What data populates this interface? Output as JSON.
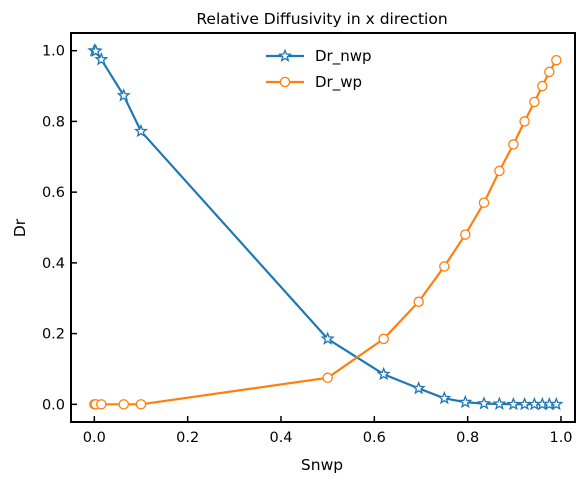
{
  "chart_data": {
    "type": "line",
    "title": "Relative Diffusivity in x direction",
    "xlabel": "Snwp",
    "ylabel": "Dr",
    "xlim": [
      -0.05,
      1.03
    ],
    "ylim": [
      -0.05,
      1.05
    ],
    "xticks": [
      0.0,
      0.2,
      0.4,
      0.6,
      0.8,
      1.0
    ],
    "xtick_labels": [
      "0.0",
      "0.2",
      "0.4",
      "0.6",
      "0.8",
      "1.0"
    ],
    "yticks": [
      0.0,
      0.2,
      0.4,
      0.6,
      0.8,
      1.0
    ],
    "ytick_labels": [
      "0.0",
      "0.2",
      "0.4",
      "0.6",
      "0.8",
      "1.0"
    ],
    "grid": false,
    "legend_position": "top-center",
    "series": [
      {
        "name": "Dr_nwp",
        "color": "#1f77b4",
        "marker": "star",
        "points": [
          [
            0.0,
            1.0
          ],
          [
            0.003,
            0.999
          ],
          [
            0.015,
            0.975
          ],
          [
            0.063,
            0.873
          ],
          [
            0.1,
            0.772
          ],
          [
            0.5,
            0.185
          ],
          [
            0.62,
            0.085
          ],
          [
            0.695,
            0.045
          ],
          [
            0.75,
            0.017
          ],
          [
            0.795,
            0.006
          ],
          [
            0.835,
            0.002
          ],
          [
            0.868,
            0.001
          ],
          [
            0.898,
            0.0
          ],
          [
            0.922,
            0.0
          ],
          [
            0.943,
            0.0
          ],
          [
            0.96,
            0.0
          ],
          [
            0.975,
            0.0
          ],
          [
            0.99,
            0.0
          ]
        ]
      },
      {
        "name": "Dr_wp",
        "color": "#ff7f0e",
        "marker": "circle",
        "points": [
          [
            0.0,
            0.0
          ],
          [
            0.003,
            0.0
          ],
          [
            0.015,
            0.0
          ],
          [
            0.063,
            0.0
          ],
          [
            0.1,
            0.0
          ],
          [
            0.5,
            0.075
          ],
          [
            0.62,
            0.185
          ],
          [
            0.695,
            0.29
          ],
          [
            0.75,
            0.39
          ],
          [
            0.795,
            0.48
          ],
          [
            0.835,
            0.57
          ],
          [
            0.868,
            0.66
          ],
          [
            0.898,
            0.735
          ],
          [
            0.922,
            0.8
          ],
          [
            0.943,
            0.855
          ],
          [
            0.96,
            0.9
          ],
          [
            0.975,
            0.94
          ],
          [
            0.99,
            0.973
          ]
        ]
      }
    ]
  }
}
